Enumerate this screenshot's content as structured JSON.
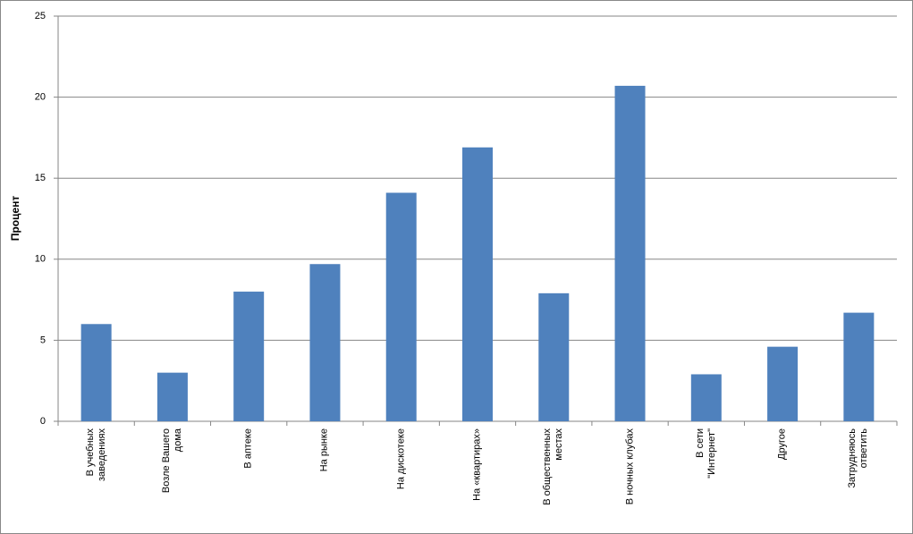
{
  "chart_data": {
    "type": "bar",
    "y_label": "Процент",
    "categories": [
      "В учебных заведениях",
      "Возле Вашего дома",
      "В аптеке",
      "На рынке",
      "На дискотеке",
      "На «квартирах»",
      "В общественных местах",
      "В ночных клубах",
      "В сети \"Интернет\"",
      "Другое",
      "Затрудняюсь ответить"
    ],
    "values": [
      6.0,
      3.0,
      8.0,
      9.7,
      14.1,
      16.9,
      7.9,
      20.7,
      2.9,
      4.6,
      6.7
    ],
    "color": "#4f81bd",
    "ylim": [
      0,
      25
    ],
    "yticks": [
      0,
      5,
      10,
      15,
      20,
      25
    ],
    "grid": true
  }
}
